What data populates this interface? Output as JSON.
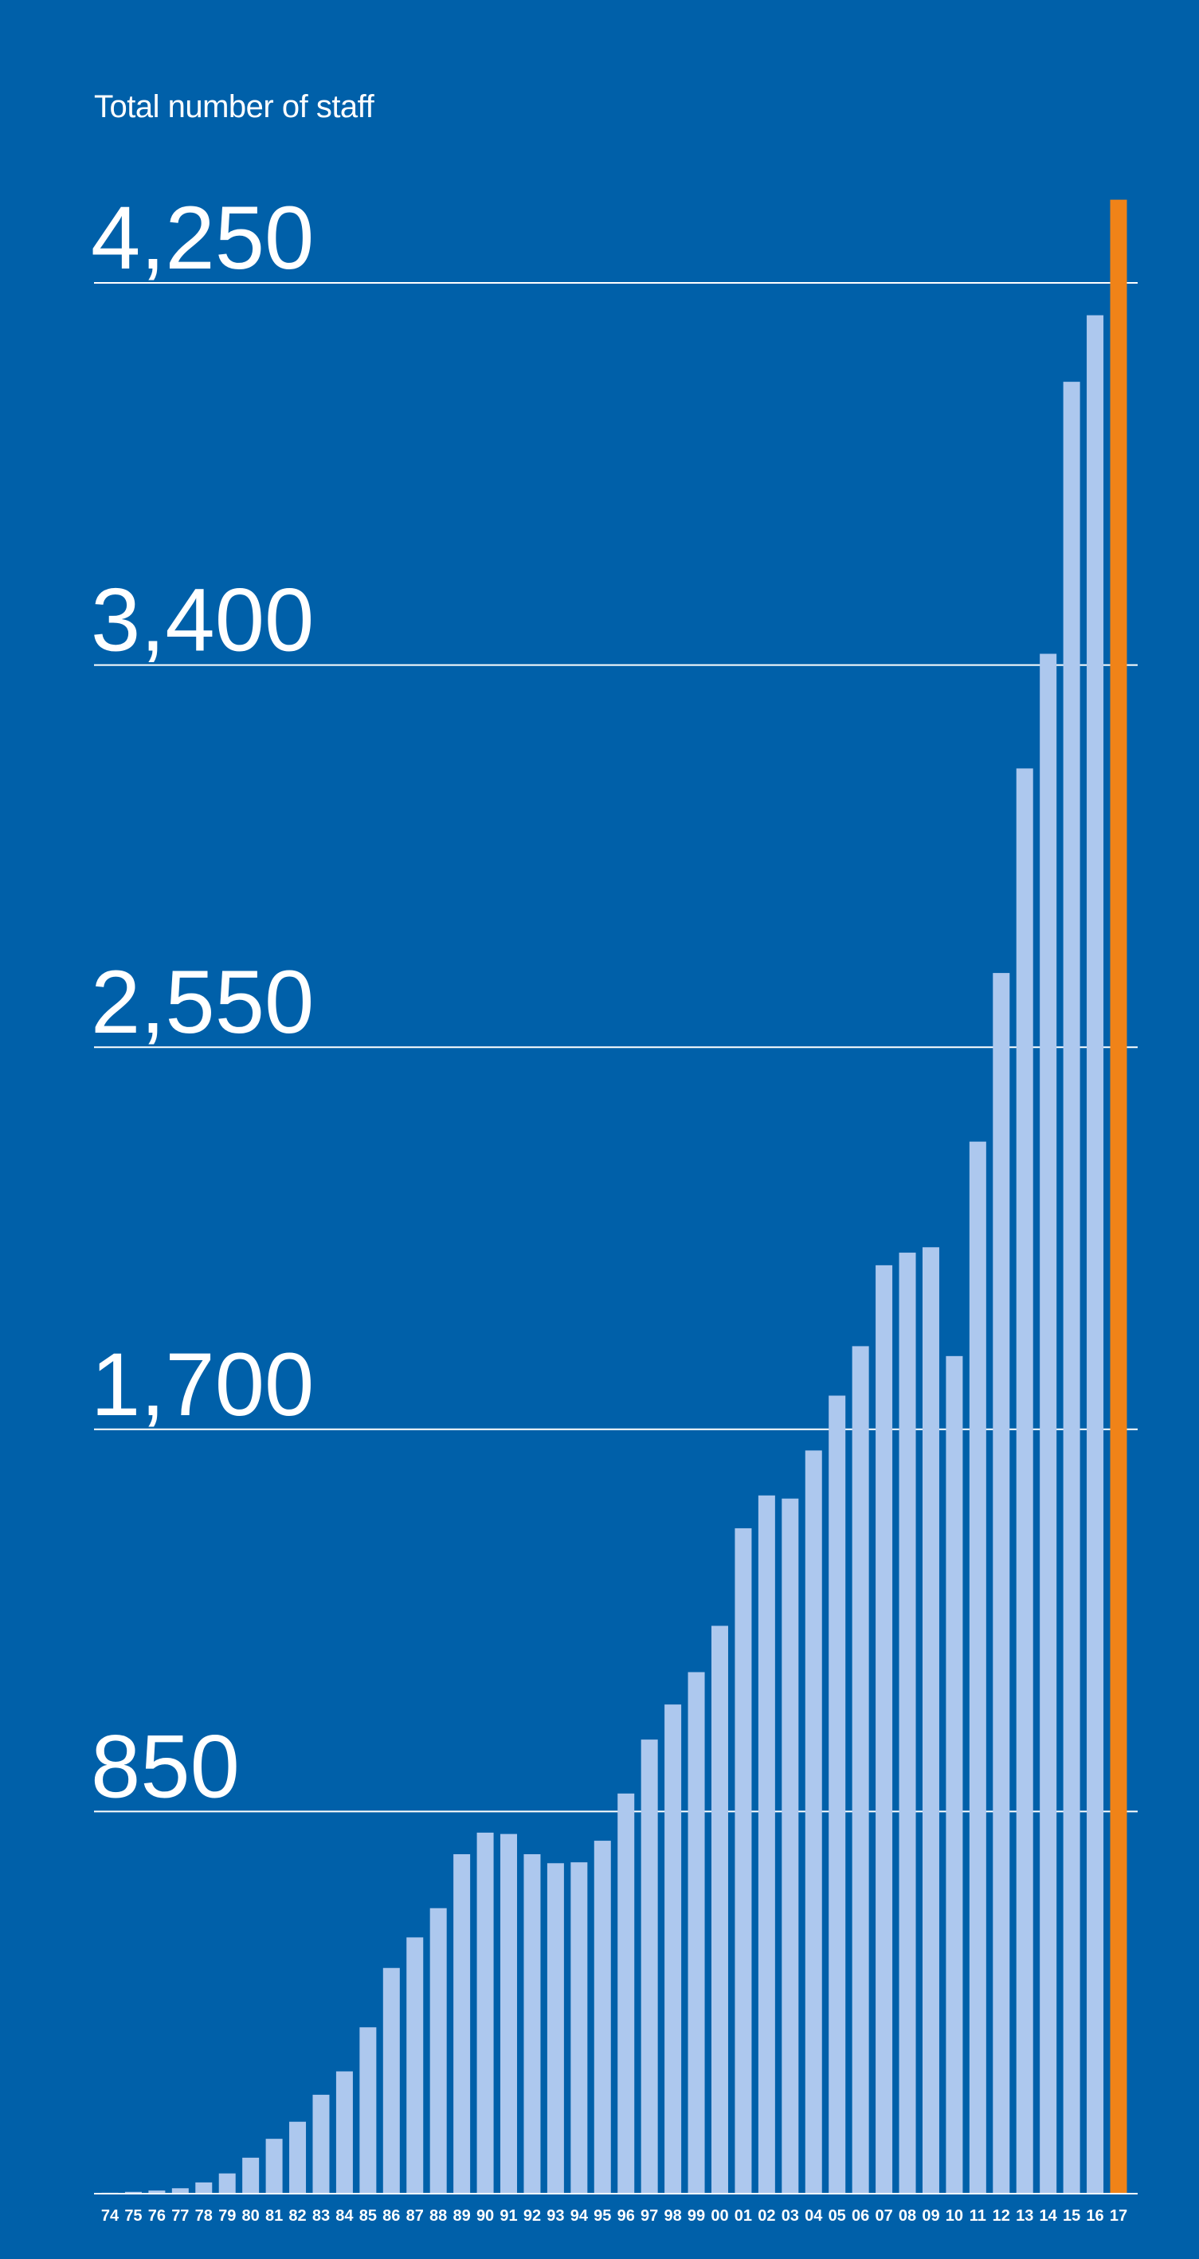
{
  "chart_data": {
    "type": "bar",
    "title": "Total number of staff",
    "xlabel": "",
    "ylabel": "",
    "ylim": [
      0,
      4250
    ],
    "yticks": [
      {
        "value": 850,
        "label": "850"
      },
      {
        "value": 1700,
        "label": "1,700"
      },
      {
        "value": 2550,
        "label": "2,550"
      },
      {
        "value": 3400,
        "label": "3,400"
      },
      {
        "value": 4250,
        "label": "4,250"
      }
    ],
    "grid": true,
    "legend": "none",
    "categories": [
      "74",
      "75",
      "76",
      "77",
      "78",
      "79",
      "80",
      "81",
      "82",
      "83",
      "84",
      "85",
      "86",
      "87",
      "88",
      "89",
      "90",
      "91",
      "92",
      "93",
      "94",
      "95",
      "96",
      "97",
      "98",
      "99",
      "00",
      "01",
      "02",
      "03",
      "04",
      "05",
      "06",
      "07",
      "08",
      "09",
      "10",
      "11",
      "12",
      "13",
      "14",
      "15",
      "16",
      "17"
    ],
    "values": [
      2,
      4,
      7,
      12,
      25,
      45,
      80,
      122,
      160,
      220,
      272,
      370,
      502,
      570,
      635,
      755,
      803,
      800,
      755,
      735,
      737,
      785,
      890,
      1010,
      1088,
      1160,
      1263,
      1480,
      1553,
      1546,
      1653,
      1775,
      1885,
      2065,
      2093,
      2105,
      1863,
      2340,
      2715,
      3170,
      3425,
      4030,
      4178,
      4435
    ],
    "highlight_index": 43,
    "colors": {
      "background": "#0060a9",
      "bar": "#adc8ee",
      "highlight": "#f08318",
      "gridline": "#ffffff",
      "text": "#ffffff"
    }
  }
}
